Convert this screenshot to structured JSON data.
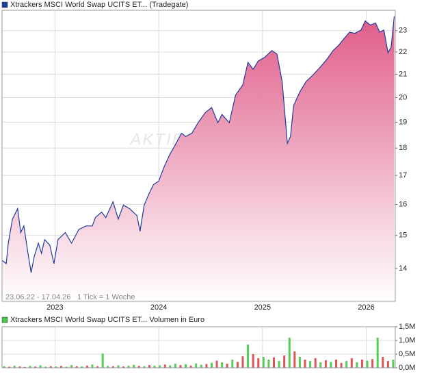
{
  "charts": [
    {
      "type": "area",
      "legend": "Xtrackers MSCI World Swap UCITS ET... (Tradegate)",
      "legend_color": "#1c3c9c",
      "watermark": "AKTIE",
      "date_range": "23.06.22 - 17.04.26",
      "tick_note": "1 Tick = 1 Woche",
      "color": "#1c3c9c",
      "fill_top": "#e05c88",
      "fill_bottom": "#ffffff",
      "log_scale": true,
      "grid": true,
      "x": [
        2022.49,
        2022.53,
        2022.55,
        2022.59,
        2022.64,
        2022.67,
        2022.7,
        2022.74,
        2022.77,
        2022.8,
        2022.84,
        2022.87,
        2022.9,
        2022.95,
        2022.99,
        2023.03,
        2023.1,
        2023.16,
        2023.23,
        2023.3,
        2023.36,
        2023.39,
        2023.45,
        2023.49,
        2023.56,
        2023.61,
        2023.66,
        2023.72,
        2023.79,
        2023.82,
        2023.86,
        2023.91,
        2023.95,
        2024.0,
        2024.05,
        2024.11,
        2024.15,
        2024.22,
        2024.26,
        2024.32,
        2024.38,
        2024.45,
        2024.51,
        2024.57,
        2024.61,
        2024.68,
        2024.74,
        2024.81,
        2024.86,
        2024.91,
        2024.96,
        2025.02,
        2025.09,
        2025.14,
        2025.19,
        2025.24,
        2025.27,
        2025.3,
        2025.36,
        2025.42,
        2025.49,
        2025.55,
        2025.62,
        2025.68,
        2025.73,
        2025.8,
        2025.84,
        2025.89,
        2025.95,
        2025.99,
        2026.04,
        2026.09,
        2026.13,
        2026.17,
        2026.21,
        2026.24,
        2026.27
      ],
      "values": [
        14.24,
        14.14,
        14.76,
        15.52,
        15.86,
        15.09,
        15.3,
        14.45,
        13.88,
        14.35,
        14.76,
        14.45,
        14.87,
        14.7,
        14.14,
        14.87,
        15.09,
        14.76,
        15.19,
        15.3,
        15.3,
        15.57,
        15.75,
        15.57,
        16.09,
        15.52,
        15.98,
        15.86,
        15.64,
        15.13,
        15.98,
        16.39,
        16.68,
        16.8,
        17.29,
        17.79,
        18.05,
        18.57,
        18.44,
        18.57,
        18.98,
        19.39,
        19.59,
        18.98,
        19.31,
        18.98,
        20.1,
        20.54,
        21.53,
        21.22,
        21.59,
        21.75,
        22.06,
        21.9,
        20.68,
        18.18,
        18.44,
        19.67,
        20.24,
        20.68,
        20.98,
        21.28,
        21.66,
        22.06,
        22.29,
        22.7,
        22.93,
        22.87,
        23.03,
        23.47,
        23.27,
        23.37,
        22.93,
        23.03,
        21.97,
        22.22,
        23.7
      ],
      "xlim": [
        2022.49,
        2026.28
      ],
      "xticks": [
        2023,
        2024,
        2025,
        2026
      ],
      "ylim": [
        13.07,
        24.0
      ],
      "yticks": [
        14,
        15,
        16,
        17,
        18,
        19,
        20,
        21,
        22,
        23
      ]
    },
    {
      "type": "bar",
      "legend": "Xtrackers MSCI World Swap UCITS ET... Volumen in Euro",
      "legend_color": "#4cc44c",
      "grid": true,
      "x": [
        2022.51,
        2022.56,
        2022.61,
        2022.66,
        2022.71,
        2022.76,
        2022.81,
        2022.86,
        2022.91,
        2022.96,
        2023.01,
        2023.06,
        2023.11,
        2023.16,
        2023.21,
        2023.26,
        2023.31,
        2023.36,
        2023.41,
        2023.46,
        2023.51,
        2023.56,
        2023.61,
        2023.66,
        2023.71,
        2023.76,
        2023.81,
        2023.86,
        2023.91,
        2023.96,
        2024.01,
        2024.06,
        2024.11,
        2024.16,
        2024.21,
        2024.26,
        2024.31,
        2024.36,
        2024.41,
        2024.46,
        2024.51,
        2024.56,
        2024.61,
        2024.66,
        2024.71,
        2024.76,
        2024.81,
        2024.86,
        2024.91,
        2024.96,
        2025.01,
        2025.06,
        2025.11,
        2025.16,
        2025.21,
        2025.26,
        2025.31,
        2025.36,
        2025.41,
        2025.46,
        2025.51,
        2025.56,
        2025.61,
        2025.66,
        2025.71,
        2025.76,
        2025.81,
        2025.86,
        2025.91,
        2025.96,
        2026.01,
        2026.06,
        2026.11,
        2026.16,
        2026.21,
        2026.26
      ],
      "values": [
        60000,
        40000,
        80000,
        50000,
        30000,
        70000,
        45000,
        90000,
        40000,
        60000,
        50000,
        70000,
        40000,
        100000,
        60000,
        50000,
        80000,
        120000,
        60000,
        520000,
        70000,
        60000,
        90000,
        50000,
        80000,
        110000,
        70000,
        60000,
        100000,
        80000,
        90000,
        120000,
        90000,
        150000,
        100000,
        130000,
        80000,
        160000,
        110000,
        140000,
        180000,
        260000,
        200000,
        150000,
        300000,
        220000,
        420000,
        850000,
        500000,
        350000,
        400000,
        300000,
        380000,
        250000,
        450000,
        1100000,
        600000,
        400000,
        300000,
        250000,
        350000,
        200000,
        280000,
        220000,
        300000,
        180000,
        250000,
        350000,
        200000,
        300000,
        260000,
        320000,
        1100000,
        400000,
        250000,
        300000
      ],
      "colors": [
        "#5c5",
        "#d55",
        "#5c5",
        "#d55",
        "#d55",
        "#5c5",
        "#d55",
        "#5c5",
        "#5c5",
        "#d55",
        "#5c5",
        "#d55",
        "#5c5",
        "#5c5",
        "#d55",
        "#5c5",
        "#d55",
        "#5c5",
        "#d55",
        "#5c5",
        "#5c5",
        "#d55",
        "#5c5",
        "#d55",
        "#5c5",
        "#5c5",
        "#d55",
        "#5c5",
        "#d55",
        "#5c5",
        "#5c5",
        "#d55",
        "#5c5",
        "#5c5",
        "#d55",
        "#5c5",
        "#d55",
        "#5c5",
        "#5c5",
        "#d55",
        "#5c5",
        "#d55",
        "#5c5",
        "#d55",
        "#5c5",
        "#d55",
        "#d55",
        "#5c5",
        "#d55",
        "#d55",
        "#5c5",
        "#5c5",
        "#d55",
        "#5c5",
        "#d55",
        "#5c5",
        "#d55",
        "#5c5",
        "#d55",
        "#5c5",
        "#d55",
        "#5c5",
        "#d55",
        "#5c5",
        "#d55",
        "#d55",
        "#5c5",
        "#d55",
        "#5c5",
        "#d55",
        "#5c5",
        "#d55",
        "#5c5",
        "#d55",
        "#d55",
        "#5c5"
      ],
      "xlim": [
        2022.49,
        2026.28
      ],
      "xticks": [
        2023,
        2024,
        2025,
        2026
      ],
      "ylim": [
        0,
        1500000
      ],
      "yticks": [
        {
          "value": 0,
          "label": "0,0M"
        },
        {
          "value": 500000,
          "label": "0,5M"
        },
        {
          "value": 1000000,
          "label": "1,0M"
        },
        {
          "value": 1500000,
          "label": "1,5M"
        }
      ]
    }
  ]
}
